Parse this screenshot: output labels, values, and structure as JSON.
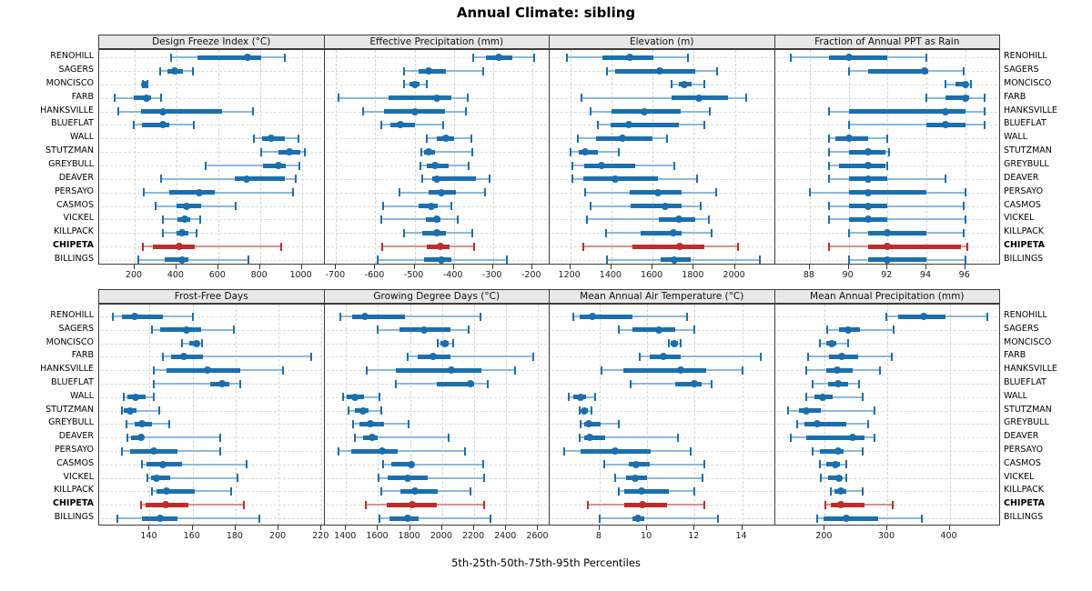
{
  "title": "Annual Climate: sibling",
  "footer": "5th-25th-50th-75th-95th Percentiles",
  "sites": [
    "RENOHILL",
    "SAGERS",
    "MONCISCO",
    "FARB",
    "HANKSVILLE",
    "BLUEFLAT",
    "WALL",
    "STUTZMAN",
    "GREYBULL",
    "DEAVER",
    "PERSAYO",
    "CASMOS",
    "VICKEL",
    "KILLPACK",
    "CHIPETA",
    "BILLINGS"
  ],
  "highlight_site": "CHIPETA",
  "colors": {
    "series_main": "#1b6fad",
    "series_light": "#8db9dc",
    "highlight_main": "#c02b2b",
    "highlight_light": "#dd9090",
    "strip_bg": "#e8e8e8",
    "border": "#3c3c3c",
    "grid": "#d4d4d4"
  },
  "chart_data": {
    "type": "dot-whisker-percentiles",
    "percentiles_shown": [
      5,
      25,
      50,
      75,
      95
    ],
    "legend_position": "none",
    "grid": "dashed",
    "panels": [
      {
        "title": "Design Freeze Index (°C)",
        "row": 0,
        "col": 0,
        "ticks": [
          200,
          400,
          600,
          800,
          1000
        ],
        "domain": [
          30,
          1100
        ],
        "values": [
          [
            375,
            500,
            740,
            805,
            920
          ],
          [
            322,
            357,
            392,
            429,
            481
          ],
          [
            240,
            245,
            250,
            254,
            259
          ],
          [
            105,
            195,
            258,
            278,
            325
          ],
          [
            120,
            230,
            335,
            620,
            765
          ],
          [
            195,
            233,
            335,
            365,
            483
          ],
          [
            772,
            811,
            853,
            919,
            986
          ],
          [
            805,
            890,
            940,
            995,
            1015
          ],
          [
            540,
            815,
            890,
            925,
            990
          ],
          [
            325,
            680,
            737,
            920,
            970
          ],
          [
            245,
            365,
            510,
            585,
            960
          ],
          [
            300,
            400,
            450,
            520,
            685
          ],
          [
            333,
            407,
            438,
            466,
            515
          ],
          [
            335,
            400,
            428,
            455,
            495
          ],
          [
            238,
            288,
            413,
            487,
            900
          ],
          [
            217,
            343,
            428,
            455,
            745
          ]
        ]
      },
      {
        "title": "Effective Precipitation (mm)",
        "row": 0,
        "col": 1,
        "ticks": [
          -700,
          -600,
          -500,
          -400,
          -300,
          -200
        ],
        "domain": [
          -730,
          -160
        ],
        "values": [
          [
            -350,
            -318,
            -285,
            -251,
            -195
          ],
          [
            -526,
            -490,
            -465,
            -421,
            -326
          ],
          [
            -526,
            -513,
            -500,
            -487,
            -468
          ],
          [
            -694,
            -567,
            -444,
            -405,
            -365
          ],
          [
            -631,
            -577,
            -500,
            -423,
            -369
          ],
          [
            -585,
            -562,
            -537,
            -500,
            -428
          ],
          [
            -469,
            -444,
            -421,
            -398,
            -354
          ],
          [
            -482,
            -475,
            -465,
            -448,
            -352
          ],
          [
            -485,
            -469,
            -449,
            -413,
            -361
          ],
          [
            -480,
            -454,
            -444,
            -344,
            -308
          ],
          [
            -538,
            -465,
            -431,
            -395,
            -321
          ],
          [
            -580,
            -490,
            -457,
            -441,
            -405
          ],
          [
            -585,
            -472,
            -444,
            -434,
            -390
          ],
          [
            -526,
            -480,
            -444,
            -421,
            -352
          ],
          [
            -582,
            -469,
            -434,
            -411,
            -349
          ],
          [
            -595,
            -475,
            -431,
            -405,
            -264
          ]
        ]
      },
      {
        "title": "Elevation (m)",
        "row": 0,
        "col": 2,
        "ticks": [
          1200,
          1400,
          1600,
          1800,
          2000
        ],
        "domain": [
          1100,
          2185
        ],
        "values": [
          [
            1185,
            1355,
            1490,
            1605,
            1770
          ],
          [
            1380,
            1420,
            1636,
            1805,
            1915
          ],
          [
            1694,
            1726,
            1756,
            1790,
            1850
          ],
          [
            1256,
            1691,
            1827,
            1965,
            2055
          ],
          [
            1300,
            1400,
            1560,
            1737,
            1880
          ],
          [
            1333,
            1398,
            1484,
            1726,
            1850
          ],
          [
            1239,
            1326,
            1453,
            1600,
            1670
          ],
          [
            1203,
            1242,
            1271,
            1333,
            1438
          ],
          [
            1210,
            1270,
            1353,
            1517,
            1704
          ],
          [
            1210,
            1264,
            1419,
            1628,
            1817
          ],
          [
            1273,
            1490,
            1626,
            1739,
            1907
          ],
          [
            1300,
            1495,
            1663,
            1743,
            1835
          ],
          [
            1280,
            1630,
            1726,
            1809,
            1874
          ],
          [
            1375,
            1543,
            1700,
            1743,
            1885
          ],
          [
            1264,
            1500,
            1731,
            1850,
            2013
          ],
          [
            1378,
            1641,
            1707,
            1784,
            2120
          ]
        ]
      },
      {
        "title": "Fraction of Annual PPT as Rain",
        "row": 0,
        "col": 3,
        "ticks": [
          88,
          90,
          92,
          94,
          96
        ],
        "domain": [
          86.2,
          97.7
        ],
        "values": [
          [
            87,
            89,
            90,
            92,
            94
          ],
          [
            90,
            91,
            93.9,
            94.1,
            95.9
          ],
          [
            95,
            95.5,
            96,
            96.1,
            96.3
          ],
          [
            94,
            95,
            96,
            96.2,
            97
          ],
          [
            89,
            90,
            95,
            96,
            97
          ],
          [
            90,
            94,
            95,
            96,
            97
          ],
          [
            89,
            89.3,
            90,
            91,
            92
          ],
          [
            89,
            90,
            91,
            91.9,
            92.1
          ],
          [
            89,
            89.5,
            91,
            91.9,
            92
          ],
          [
            89,
            90,
            91,
            92,
            95
          ],
          [
            88,
            90,
            91,
            94,
            96
          ],
          [
            89,
            90,
            91,
            92,
            95.9
          ],
          [
            89,
            90,
            91,
            92,
            96
          ],
          [
            90,
            91,
            92,
            94,
            95.9
          ],
          [
            89,
            91,
            92,
            95.8,
            96.1
          ],
          [
            90,
            91,
            92,
            94,
            96
          ]
        ]
      },
      {
        "title": "Frost-Free Days",
        "row": 1,
        "col": 0,
        "ticks": [
          140,
          160,
          180,
          200,
          220
        ],
        "domain": [
          116.5,
          220.5
        ],
        "values": [
          [
            123,
            127,
            133,
            146,
            160
          ],
          [
            141,
            145,
            157,
            164,
            179
          ],
          [
            155,
            158.5,
            162,
            163,
            164.5
          ],
          [
            146,
            150,
            156,
            165,
            215
          ],
          [
            142,
            148,
            167,
            182,
            202
          ],
          [
            142,
            168,
            173.5,
            177,
            182
          ],
          [
            128,
            129.5,
            133.5,
            138,
            142
          ],
          [
            127,
            128,
            131,
            134,
            144.5
          ],
          [
            129,
            133,
            136.5,
            141,
            149
          ],
          [
            129.5,
            131.5,
            136,
            137,
            173
          ],
          [
            127,
            131,
            142,
            153,
            173
          ],
          [
            136.5,
            138.5,
            146,
            155,
            185
          ],
          [
            139,
            140.5,
            143,
            149.5,
            181
          ],
          [
            141,
            143,
            148,
            161,
            178
          ],
          [
            136,
            138,
            147.5,
            158,
            184
          ],
          [
            125,
            136.5,
            145,
            153,
            191
          ]
        ]
      },
      {
        "title": "Growing Degree Days (°C)",
        "row": 1,
        "col": 1,
        "ticks": [
          1400,
          1600,
          1800,
          2000,
          2200,
          2400,
          2600
        ],
        "domain": [
          1265,
          2660
        ],
        "values": [
          [
            1365,
            1440,
            1520,
            1770,
            2240
          ],
          [
            1600,
            1735,
            1890,
            2050,
            2165
          ],
          [
            1975,
            1990,
            2020,
            2040,
            2070
          ],
          [
            1785,
            1850,
            1945,
            2050,
            2570
          ],
          [
            1530,
            1710,
            2055,
            2245,
            2455
          ],
          [
            1710,
            1965,
            2175,
            2200,
            2285
          ],
          [
            1380,
            1405,
            1455,
            1515,
            1610
          ],
          [
            1415,
            1455,
            1505,
            1540,
            1620
          ],
          [
            1445,
            1485,
            1550,
            1640,
            1790
          ],
          [
            1455,
            1505,
            1565,
            1600,
            2040
          ],
          [
            1355,
            1430,
            1625,
            1720,
            2145
          ],
          [
            1630,
            1680,
            1810,
            1825,
            2255
          ],
          [
            1605,
            1660,
            1785,
            1910,
            2260
          ],
          [
            1620,
            1740,
            1830,
            1975,
            2175
          ],
          [
            1525,
            1655,
            1815,
            1965,
            2260
          ],
          [
            1610,
            1670,
            1785,
            1855,
            2300
          ]
        ]
      },
      {
        "title": "Mean Annual Air Temperature (°C)",
        "row": 1,
        "col": 2,
        "ticks": [
          8,
          10,
          12,
          14
        ],
        "domain": [
          5.9,
          15.3
        ],
        "values": [
          [
            6.9,
            7.15,
            7.7,
            9.4,
            11.7
          ],
          [
            8.8,
            9.4,
            10.5,
            11.2,
            12.0
          ],
          [
            10.9,
            11.0,
            11.15,
            11.3,
            11.4
          ],
          [
            9.7,
            10.1,
            10.7,
            11.4,
            14.8
          ],
          [
            8.1,
            9.0,
            11.4,
            12.5,
            14.0
          ],
          [
            9.3,
            11.2,
            12.0,
            12.3,
            12.7
          ],
          [
            6.7,
            6.9,
            7.2,
            7.45,
            7.8
          ],
          [
            7.15,
            7.25,
            7.35,
            7.5,
            7.65
          ],
          [
            7.2,
            7.35,
            7.55,
            8.05,
            8.8
          ],
          [
            7.15,
            7.35,
            7.6,
            8.25,
            11.3
          ],
          [
            6.5,
            7.2,
            8.65,
            10.15,
            11.85
          ],
          [
            8.2,
            9.25,
            9.55,
            10.1,
            12.4
          ],
          [
            8.65,
            9.1,
            9.5,
            10.0,
            12.35
          ],
          [
            8.8,
            9.05,
            9.75,
            10.9,
            12.0
          ],
          [
            7.5,
            9.05,
            9.8,
            10.85,
            12.4
          ],
          [
            8.0,
            9.4,
            9.6,
            9.9,
            13.0
          ]
        ]
      },
      {
        "title": "Mean Annual Precipitation (mm)",
        "row": 1,
        "col": 3,
        "ticks": [
          200,
          300,
          400
        ],
        "domain": [
          120,
          478
        ],
        "values": [
          [
            299,
            317,
            358,
            394,
            460
          ],
          [
            204,
            223,
            238,
            256,
            311
          ],
          [
            192,
            202,
            211,
            219,
            238
          ],
          [
            173,
            207,
            227,
            254,
            307
          ],
          [
            171,
            202,
            220,
            244,
            288
          ],
          [
            180,
            205,
            222,
            237,
            255
          ],
          [
            170,
            184,
            196,
            212,
            260
          ],
          [
            141,
            158,
            171,
            194,
            280
          ],
          [
            156,
            168,
            188,
            234,
            270
          ],
          [
            146,
            171,
            245,
            263,
            279
          ],
          [
            181,
            192,
            222,
            230,
            260
          ],
          [
            192,
            202,
            217,
            225,
            234
          ],
          [
            194,
            205,
            223,
            227,
            235
          ],
          [
            210,
            216,
            226,
            234,
            260
          ],
          [
            201,
            210,
            226,
            263,
            309
          ],
          [
            188,
            198,
            234,
            285,
            356
          ]
        ]
      }
    ]
  }
}
